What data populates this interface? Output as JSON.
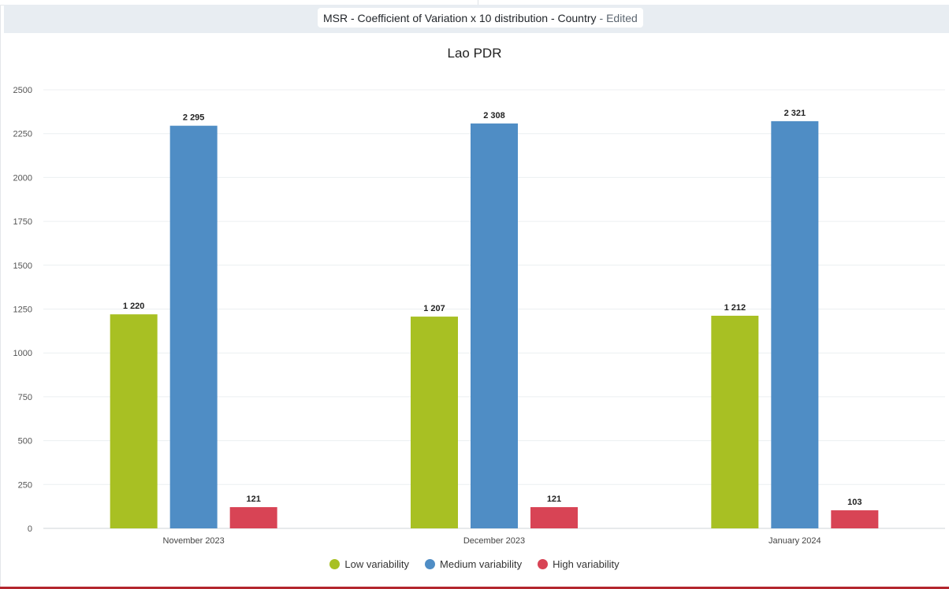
{
  "header": {
    "title": "MSR - Coefficient of Variation x 10 distribution - Country",
    "edited": "- Edited"
  },
  "chart_data": {
    "type": "bar",
    "title": "Lao PDR",
    "categories": [
      "November 2023",
      "December 2023",
      "January 2024"
    ],
    "series": [
      {
        "name": "Low variability",
        "color": "#a8c023",
        "values": [
          1220,
          1207,
          1212
        ],
        "labels": [
          "1 220",
          "1 207",
          "1 212"
        ]
      },
      {
        "name": "Medium variability",
        "color": "#4f8dc5",
        "values": [
          2295,
          2308,
          2321
        ],
        "labels": [
          "2 295",
          "2 308",
          "2 321"
        ]
      },
      {
        "name": "High variability",
        "color": "#d84455",
        "values": [
          121,
          121,
          103
        ],
        "labels": [
          "121",
          "121",
          "103"
        ]
      }
    ],
    "ylim": [
      0,
      2500
    ],
    "yticks": [
      "0",
      "250",
      "500",
      "750",
      "1000",
      "1250",
      "1500",
      "1750",
      "2000",
      "2250",
      "2500"
    ],
    "grid": true,
    "legend_position": "bottom",
    "xlabel": "",
    "ylabel": ""
  }
}
